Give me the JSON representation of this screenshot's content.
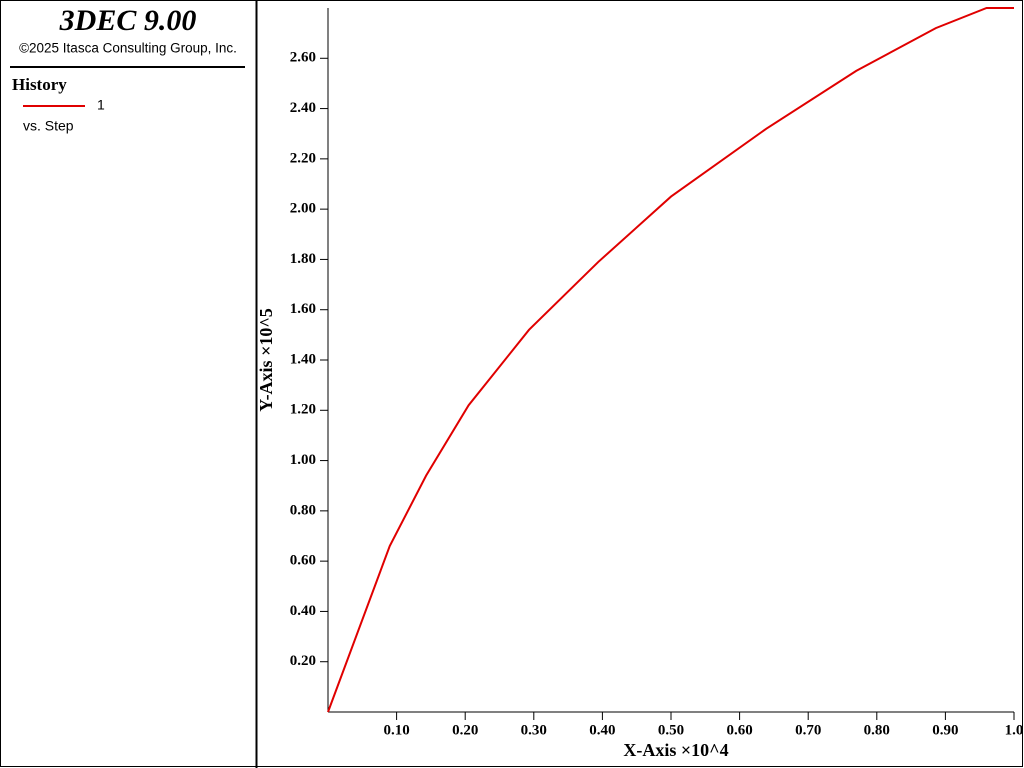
{
  "header": {
    "title": "3DEC 9.00",
    "copyright": "©2025 Itasca Consulting Group, Inc."
  },
  "legend": {
    "title": "History",
    "entry": "1",
    "subtitle": "vs. Step"
  },
  "chart_data": {
    "type": "line",
    "x_label": "X-Axis ×10^4",
    "y_label": "Y-Axis ×10^5",
    "x": [
      0,
      0.09,
      0.143,
      0.205,
      0.293,
      0.394,
      0.5,
      0.639,
      0.77,
      0.886,
      0.96,
      1.0
    ],
    "series": [
      {
        "name": "1",
        "color": "#e00000",
        "values": [
          0,
          0.66,
          0.94,
          1.22,
          1.52,
          1.79,
          2.05,
          2.32,
          2.55,
          2.72,
          2.8,
          2.8
        ]
      }
    ],
    "xlim": [
      0,
      1.0
    ],
    "ylim": [
      0,
      2.8
    ],
    "xticks": [
      {
        "value": 0.1,
        "label": "0.10"
      },
      {
        "value": 0.2,
        "label": "0.20"
      },
      {
        "value": 0.3,
        "label": "0.30"
      },
      {
        "value": 0.4,
        "label": "0.40"
      },
      {
        "value": 0.5,
        "label": "0.50"
      },
      {
        "value": 0.6,
        "label": "0.60"
      },
      {
        "value": 0.7,
        "label": "0.70"
      },
      {
        "value": 0.8,
        "label": "0.80"
      },
      {
        "value": 0.9,
        "label": "0.90"
      },
      {
        "value": 1.0,
        "label": "1.0"
      }
    ],
    "yticks": [
      {
        "value": 0.2,
        "label": "0.20"
      },
      {
        "value": 0.4,
        "label": "0.40"
      },
      {
        "value": 0.6,
        "label": "0.60"
      },
      {
        "value": 0.8,
        "label": "0.80"
      },
      {
        "value": 1.0,
        "label": "1.00"
      },
      {
        "value": 1.2,
        "label": "1.20"
      },
      {
        "value": 1.4,
        "label": "1.40"
      },
      {
        "value": 1.6,
        "label": "1.60"
      },
      {
        "value": 1.8,
        "label": "1.80"
      },
      {
        "value": 2.0,
        "label": "2.00"
      },
      {
        "value": 2.2,
        "label": "2.20"
      },
      {
        "value": 2.4,
        "label": "2.40"
      },
      {
        "value": 2.6,
        "label": "2.60"
      }
    ],
    "grid": false
  }
}
